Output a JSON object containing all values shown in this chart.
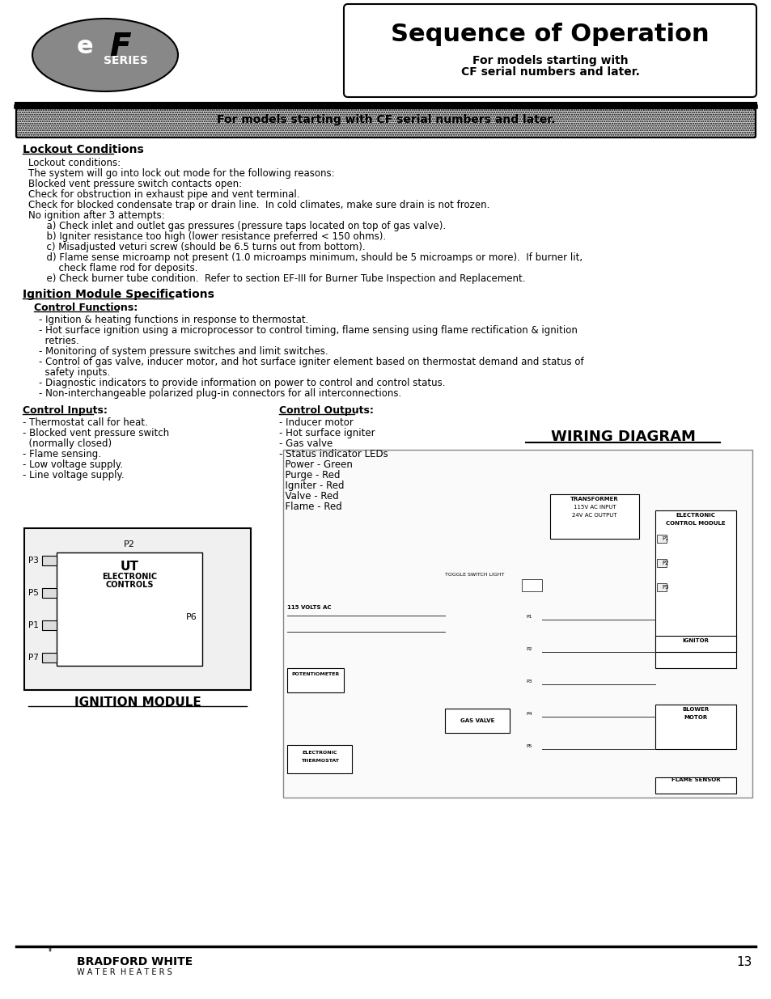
{
  "title": "Sequence of Operation",
  "subtitle1": "For models starting with",
  "subtitle2": "CF serial numbers and later.",
  "banner_text": "For models starting with CF serial numbers and later.",
  "page_number": "13",
  "bg_color": "#ffffff",
  "text_color": "#000000",
  "section1_title": "Lockout Conditions",
  "section1_body": [
    "Lockout conditions:",
    "The system will go into lock out mode for the following reasons:",
    "Blocked vent pressure switch contacts open:",
    "Check for obstruction in exhaust pipe and vent terminal.",
    "Check for blocked condensate trap or drain line.  In cold climates, make sure drain is not frozen.",
    "No ignition after 3 attempts:",
    "      a) Check inlet and outlet gas pressures (pressure taps located on top of gas valve).",
    "      b) Igniter resistance too high (lower resistance preferred < 150 ohms).",
    "      c) Misadjusted veturi screw (should be 6.5 turns out from bottom).",
    "      d) Flame sense microamp not present (1.0 microamps minimum, should be 5 microamps or more).  If burner lit,",
    "          check flame rod for deposits.",
    "      e) Check burner tube condition.  Refer to section EF-III for Burner Tube Inspection and Replacement."
  ],
  "section2_title": "Ignition Module Specifications",
  "section2_sub": "Control Functions:",
  "section2_body": [
    "- Ignition & heating functions in response to thermostat.",
    "- Hot surface ignition using a microprocessor to control timing, flame sensing using flame rectification & ignition",
    "  retries.",
    "- Monitoring of system pressure switches and limit switches.",
    "- Control of gas valve, inducer motor, and hot surface igniter element based on thermostat demand and status of",
    "  safety inputs.",
    "- Diagnostic indicators to provide information on power to control and control status.",
    "- Non-interchangeable polarized plug-in connectors for all interconnections."
  ],
  "col1_title": "Control Inputs:",
  "col1_body": [
    "- Thermostat call for heat.",
    "- Blocked vent pressure switch",
    "  (normally closed)",
    "- Flame sensing.",
    "- Low voltage supply.",
    "- Line voltage supply."
  ],
  "col2_title": "Control Outputs:",
  "col2_body": [
    "- Inducer motor",
    "- Hot surface igniter",
    "- Gas valve",
    "- Status indicator LEDs",
    "  Power - Green",
    "  Purge - Red",
    "  Igniter - Red",
    "  Valve - Red",
    "  Flame - Red"
  ],
  "wiring_title": "WIRING DIAGRAM",
  "ignition_label": "IGNITION MODULE",
  "module_labels": [
    "P3",
    "P5",
    "P1",
    "P7"
  ],
  "module_p2": "P2",
  "module_p6": "P6"
}
